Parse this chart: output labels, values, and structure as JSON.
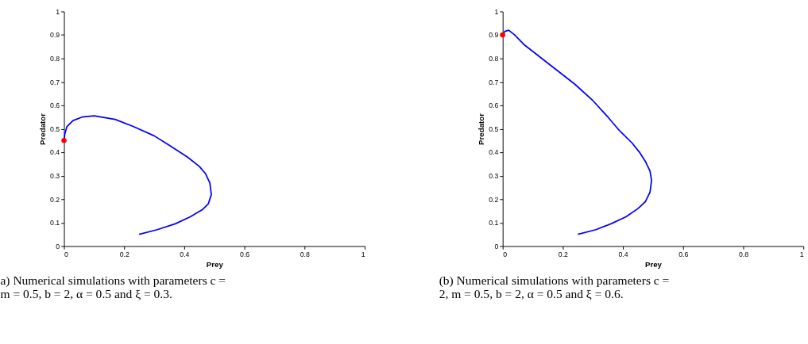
{
  "chart_data": [
    {
      "type": "line",
      "xlabel": "Prey",
      "ylabel": "Predator",
      "xlim": [
        0,
        1
      ],
      "ylim": [
        0,
        1
      ],
      "xticks": [
        0,
        0.2,
        0.4,
        0.6,
        0.8,
        1
      ],
      "yticks": [
        0,
        0.1,
        0.2,
        0.3,
        0.4,
        0.5,
        0.6,
        0.7,
        0.8,
        0.9,
        1
      ],
      "grid": false,
      "annotations": [
        "a) Numerical simulations with parameters c =",
        "m = 0.5, b = 2, α = 0.5 and ξ = 0.3."
      ],
      "series": [
        {
          "color": "#0000ff",
          "marker": "none",
          "line_style": "solid",
          "x": [
            0.25,
            0.31,
            0.37,
            0.42,
            0.46,
            0.48,
            0.49,
            0.485,
            0.47,
            0.45,
            0.41,
            0.35,
            0.3,
            0.23,
            0.17,
            0.1,
            0.06,
            0.03,
            0.01,
            0.003,
            0
          ],
          "values": [
            0.05,
            0.07,
            0.095,
            0.125,
            0.155,
            0.18,
            0.22,
            0.27,
            0.31,
            0.34,
            0.38,
            0.43,
            0.47,
            0.51,
            0.54,
            0.555,
            0.55,
            0.535,
            0.51,
            0.48,
            0.45
          ]
        },
        {
          "type": "scatter",
          "color": "#ff0000",
          "marker": "circle",
          "x": [
            0
          ],
          "values": [
            0.45
          ]
        }
      ]
    },
    {
      "type": "line",
      "xlabel": "Prey",
      "ylabel": "Predator",
      "xlim": [
        0,
        1
      ],
      "ylim": [
        0,
        1
      ],
      "xticks": [
        0,
        0.2,
        0.4,
        0.6,
        0.8,
        1
      ],
      "yticks": [
        0,
        0.1,
        0.2,
        0.3,
        0.4,
        0.5,
        0.6,
        0.7,
        0.8,
        0.9,
        1
      ],
      "grid": false,
      "annotations": [
        "(b) Numerical simulations with parameters c =",
        "2, m = 0.5, b = 2, α = 0.5 and ξ = 0.6."
      ],
      "series": [
        {
          "color": "#0000ff",
          "marker": "none",
          "line_style": "solid",
          "x": [
            0.25,
            0.31,
            0.36,
            0.41,
            0.45,
            0.475,
            0.49,
            0.495,
            0.49,
            0.475,
            0.455,
            0.43,
            0.39,
            0.35,
            0.3,
            0.24,
            0.18,
            0.12,
            0.07,
            0.04,
            0.02,
            0.007,
            0
          ],
          "values": [
            0.05,
            0.07,
            0.095,
            0.125,
            0.16,
            0.19,
            0.23,
            0.28,
            0.32,
            0.36,
            0.4,
            0.44,
            0.49,
            0.55,
            0.62,
            0.69,
            0.75,
            0.81,
            0.86,
            0.9,
            0.92,
            0.915,
            0.9
          ]
        },
        {
          "type": "scatter",
          "color": "#ff0000",
          "marker": "circle",
          "x": [
            0
          ],
          "values": [
            0.9
          ]
        }
      ]
    }
  ]
}
